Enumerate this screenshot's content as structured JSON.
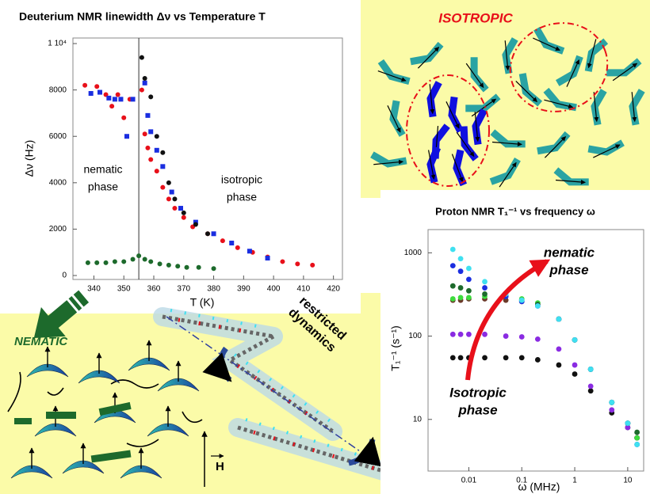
{
  "chart_data": [
    {
      "type": "scatter",
      "title": "Deuterium NMR linewidth Δν vs Temperature T",
      "x_label": "T (K)",
      "y_label": "Δν (Hz)",
      "xlim": [
        333,
        423
      ],
      "xticks": [
        340,
        350,
        360,
        370,
        380,
        390,
        400,
        410,
        420
      ],
      "ylim": [
        -170,
        10240
      ],
      "yticks": [
        0,
        2000,
        4000,
        6000,
        8000,
        {
          "value": 10000,
          "label": "1 10⁴"
        }
      ],
      "divider_x": 355,
      "annotations": [
        [
          "nematic",
          "phase"
        ],
        [
          "isotropic",
          "phase"
        ]
      ],
      "series": [
        {
          "color": "#e8101a",
          "marker": "circle",
          "x": [
            337,
            341,
            344,
            346,
            348,
            350,
            352,
            356,
            357,
            358,
            359,
            361,
            363,
            365,
            367,
            370,
            373,
            378,
            383,
            388,
            393,
            398,
            403,
            408,
            413
          ],
          "values": [
            8200,
            8150,
            7800,
            7300,
            7800,
            6800,
            7600,
            8000,
            6100,
            5500,
            5000,
            4500,
            3800,
            3300,
            2900,
            2500,
            2100,
            1800,
            1500,
            1200,
            1000,
            800,
            600,
            500,
            450
          ]
        },
        {
          "color": "#1a2ee0",
          "marker": "square",
          "x": [
            339,
            342,
            345,
            347,
            349,
            351,
            353,
            357,
            358,
            359,
            361,
            363,
            366,
            369,
            374,
            380,
            386,
            392,
            398
          ],
          "values": [
            7850,
            7900,
            7650,
            7600,
            7600,
            6000,
            7600,
            8300,
            6900,
            6200,
            5400,
            4700,
            3600,
            2900,
            2300,
            1800,
            1400,
            1050,
            750
          ]
        },
        {
          "color": "#111111",
          "marker": "circle",
          "x": [
            356,
            357,
            359,
            361,
            363,
            365,
            367,
            370,
            374,
            378
          ],
          "values": [
            9400,
            8500,
            7700,
            6000,
            5300,
            4000,
            3300,
            2700,
            2200,
            1800
          ]
        },
        {
          "color": "#1d6a2c",
          "marker": "circle",
          "x": [
            338,
            341,
            344,
            347,
            350,
            353,
            355,
            357,
            359,
            362,
            365,
            368,
            371,
            375,
            380
          ],
          "values": [
            550,
            550,
            550,
            600,
            600,
            700,
            850,
            700,
            600,
            500,
            450,
            400,
            350,
            350,
            300
          ]
        }
      ]
    },
    {
      "type": "scatter",
      "title": "Proton NMR T₁⁻¹ vs frequency ω",
      "x_label": "ω (MHz)",
      "y_label": "T₁⁻¹ (s⁻¹)",
      "log_x": true,
      "log_y": true,
      "xlim": [
        0.0017,
        20
      ],
      "xticks": [
        0.01,
        0.1,
        1,
        10
      ],
      "ylim": [
        2.4,
        1900
      ],
      "yticks": [
        10,
        100,
        1000
      ],
      "annotations": [
        [
          "nematic",
          "phase"
        ],
        [
          "Isotropic",
          "phase"
        ]
      ],
      "x": [
        0.005,
        0.007,
        0.01,
        0.02,
        0.05,
        0.1,
        0.2,
        0.5,
        1,
        2,
        5,
        10,
        15
      ],
      "series": [
        {
          "color": "#111111",
          "marker": "circle",
          "values": [
            55,
            55,
            55,
            55,
            55,
            55,
            52,
            45,
            35,
            22,
            12,
            8,
            6
          ]
        },
        {
          "color": "#8a2be2",
          "marker": "circle",
          "values": [
            105,
            105,
            105,
            105,
            100,
            98,
            92,
            70,
            45,
            25,
            13,
            8,
            6
          ]
        },
        {
          "color": "#6b3a2a",
          "marker": "circle",
          "values": [
            270,
            270,
            280,
            280,
            270,
            260,
            240,
            160,
            90,
            40,
            16,
            9,
            6
          ]
        },
        {
          "color": "#3ddc3d",
          "marker": "circle",
          "values": [
            280,
            290,
            290,
            300,
            300,
            280,
            250,
            160,
            90,
            40,
            16,
            9,
            6
          ]
        },
        {
          "color": "#1d6a2c",
          "marker": "circle",
          "values": [
            400,
            380,
            350,
            320,
            300,
            270,
            240,
            160,
            90,
            40,
            16,
            9,
            7
          ]
        },
        {
          "color": "#1a2ee0",
          "marker": "circle",
          "values": [
            700,
            600,
            480,
            380,
            300,
            260,
            230,
            160,
            90,
            40,
            16,
            9,
            5
          ]
        },
        {
          "color": "#3fe0f0",
          "marker": "circle",
          "values": [
            1100,
            850,
            650,
            450,
            320,
            270,
            230,
            160,
            90,
            40,
            16,
            9,
            5
          ]
        }
      ]
    }
  ],
  "panels": {
    "isotropic": "ISOTROPIC",
    "nematic": "NEMATIC",
    "dynamics": [
      "restricted",
      "dynamics"
    ],
    "field": "H"
  }
}
